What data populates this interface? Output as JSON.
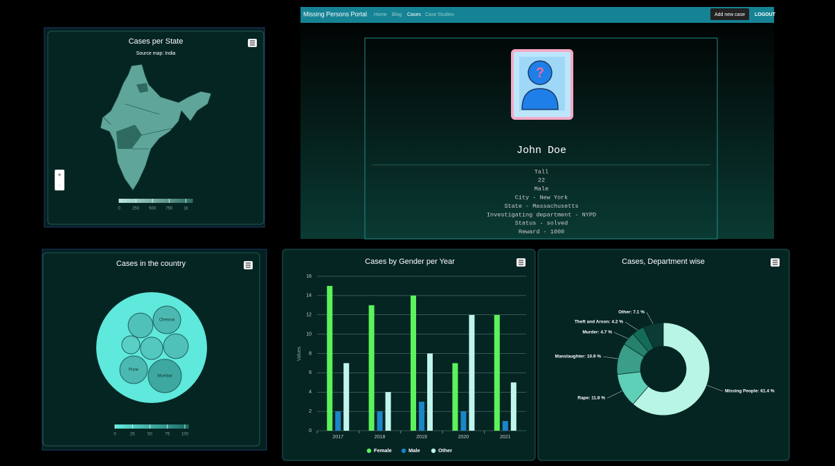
{
  "portal": {
    "brand": "Missing Persons Portal",
    "nav": [
      "Home",
      "Blog",
      "Cases",
      "Case Studies"
    ],
    "add_button": "Add new case",
    "logout": "LOGOUT",
    "name": "John Doe",
    "details": [
      "Tall",
      "22",
      "Male",
      "City - New York",
      "State - Massachusetts",
      "Investigating department - NYPD",
      "Status - solved",
      "Reward - 1000"
    ]
  },
  "chart_data": [
    {
      "type": "map",
      "title": "Cases per State",
      "subtitle": "Source map: India",
      "clim": [
        0,
        1100
      ],
      "cticks": [
        0,
        250,
        500,
        750,
        {
          "value": 1000,
          "label": "1k"
        }
      ]
    },
    {
      "type": "bubble",
      "title": "Cases in the country",
      "categories": [
        "Chennai",
        null,
        null,
        null,
        null,
        "Pune",
        "Mumbai"
      ],
      "values": [
        40,
        32,
        17,
        26,
        32,
        40,
        58
      ],
      "clim": [
        0,
        105
      ],
      "cticks": [
        0,
        25,
        50,
        75,
        100
      ]
    },
    {
      "type": "bar",
      "title": "Cases by Gender per Year",
      "y_label": "Values",
      "categories": [
        "2017",
        "2018",
        "2019",
        "2020",
        "2021"
      ],
      "series": [
        {
          "name": "Female",
          "color": "#5cf25c",
          "values": [
            15,
            13,
            14,
            7,
            12
          ]
        },
        {
          "name": "Male",
          "color": "#1a86c8",
          "values": [
            2,
            2,
            3,
            2,
            1
          ]
        },
        {
          "name": "Other",
          "color": "#c0f5ee",
          "values": [
            7,
            4,
            8,
            12,
            5
          ]
        }
      ],
      "ylim": [
        0,
        16
      ],
      "yticks": [
        0,
        2,
        4,
        6,
        8,
        10,
        12,
        14,
        16
      ],
      "grid": true
    },
    {
      "type": "pie",
      "title": "Cases, Department wise",
      "categories": [
        "Missing People",
        "Rape",
        "Manslaughter",
        "Murder",
        "Theft and Arson",
        "Other"
      ],
      "values": [
        61.4,
        11.8,
        10.9,
        4.7,
        4.2,
        7.1
      ],
      "value_labels": [
        "Missing People: 61.4 %",
        "Rape: 11.8 %",
        "Manslaughter: 10.9 %",
        "Murder: 4.7 %",
        "Theft and Arson: 4.2 %",
        "Other: 7.1 %"
      ],
      "colors": [
        "#b8f5e4",
        "#5fd0b8",
        "#3a9e88",
        "#25806c",
        "#146c58",
        "#0c3a34"
      ]
    }
  ]
}
